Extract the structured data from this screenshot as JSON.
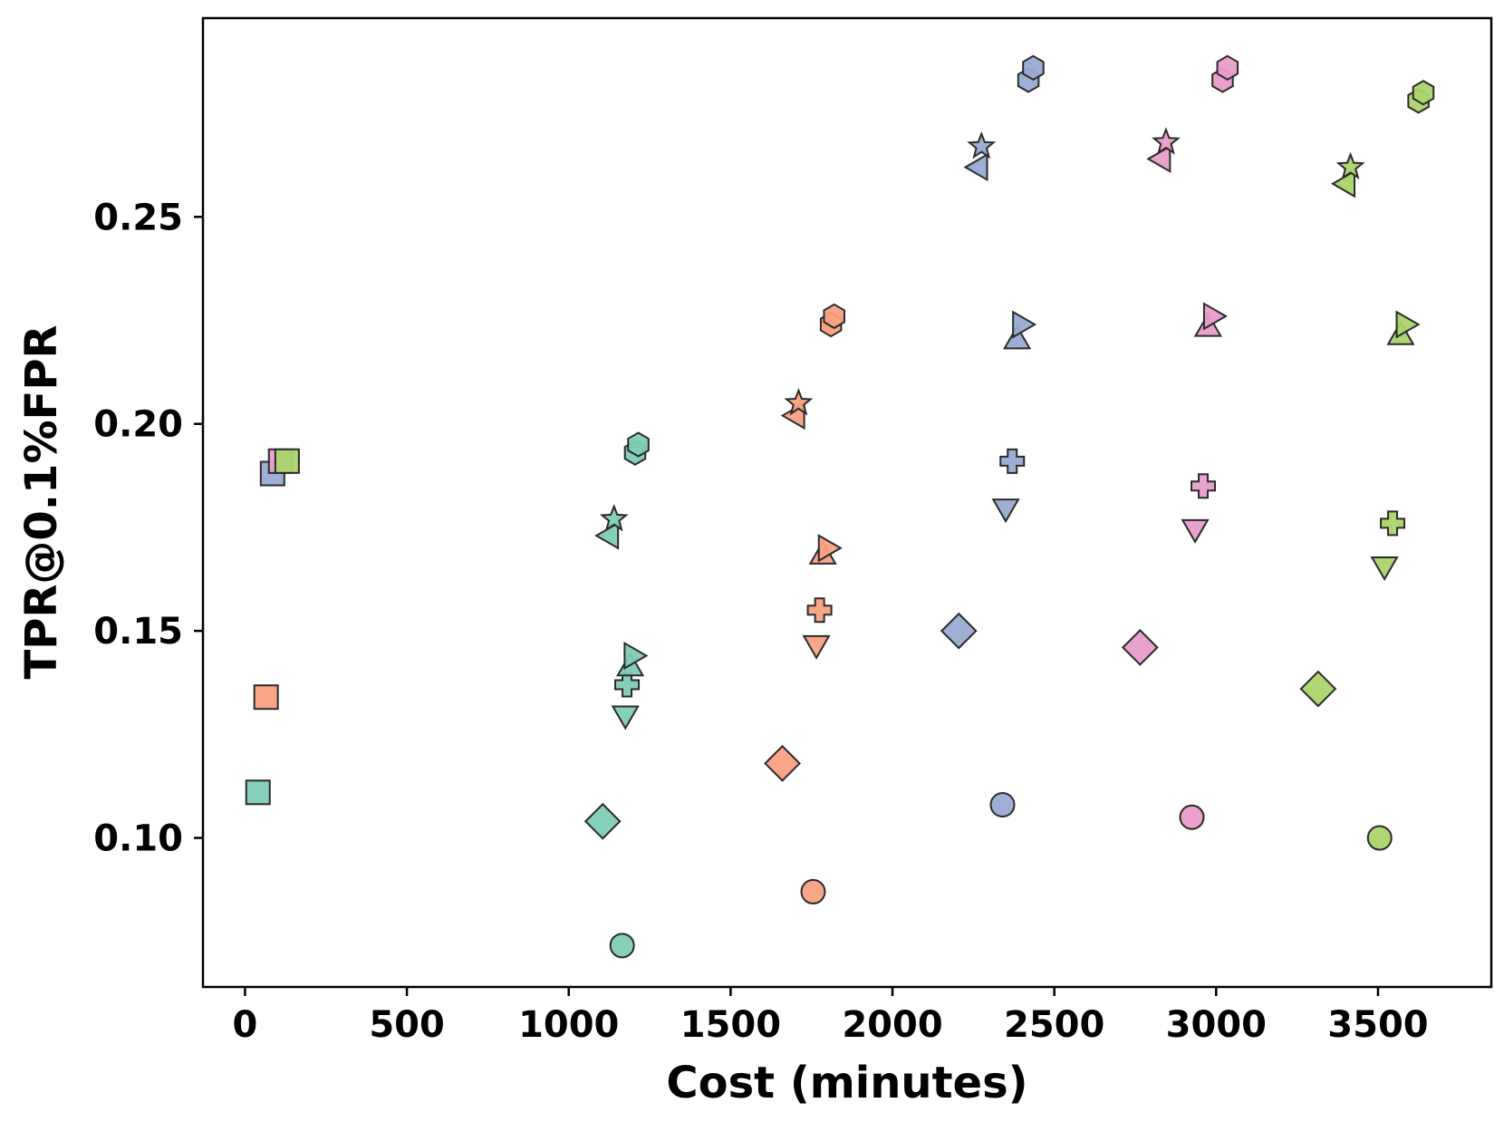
{
  "chart_data": {
    "type": "scatter",
    "title": "",
    "xlabel": "Cost (minutes)",
    "ylabel": "TPR@0.1%FPR",
    "xlim": [
      -130,
      3850
    ],
    "ylim": [
      0.064,
      0.298
    ],
    "xticks": [
      0,
      500,
      1000,
      1500,
      2000,
      2500,
      3000,
      3500
    ],
    "yticks": [
      0.1,
      0.15,
      0.2,
      0.25
    ],
    "xtick_labels": [
      "0",
      "500",
      "1000",
      "1500",
      "2000",
      "2500",
      "3000",
      "3500"
    ],
    "ytick_labels": [
      "0.10",
      "0.15",
      "0.20",
      "0.25"
    ],
    "grid": false,
    "legend": "none",
    "colors": {
      "teal": "#7fccb6",
      "orange": "#f9a081",
      "blue": "#9aaad2",
      "pink": "#e89ccb",
      "green": "#abd46a"
    },
    "points": [
      {
        "x": 40,
        "y": 0.111,
        "marker": "square",
        "color": "teal"
      },
      {
        "x": 65,
        "y": 0.134,
        "marker": "square",
        "color": "orange"
      },
      {
        "x": 85,
        "y": 0.188,
        "marker": "square",
        "color": "blue"
      },
      {
        "x": 110,
        "y": 0.191,
        "marker": "square",
        "color": "pink"
      },
      {
        "x": 130,
        "y": 0.191,
        "marker": "square",
        "color": "green"
      },
      {
        "x": 1105,
        "y": 0.104,
        "marker": "diamond",
        "color": "teal"
      },
      {
        "x": 1165,
        "y": 0.074,
        "marker": "circle",
        "color": "teal"
      },
      {
        "x": 1175,
        "y": 0.13,
        "marker": "triangle-down",
        "color": "teal"
      },
      {
        "x": 1180,
        "y": 0.137,
        "marker": "plus",
        "color": "teal"
      },
      {
        "x": 1190,
        "y": 0.141,
        "marker": "triangle-up",
        "color": "teal"
      },
      {
        "x": 1195,
        "y": 0.144,
        "marker": "triangle-right",
        "color": "teal"
      },
      {
        "x": 1130,
        "y": 0.173,
        "marker": "triangle-left",
        "color": "teal"
      },
      {
        "x": 1140,
        "y": 0.177,
        "marker": "star",
        "color": "teal"
      },
      {
        "x": 1205,
        "y": 0.193,
        "marker": "hexagon",
        "color": "teal"
      },
      {
        "x": 1215,
        "y": 0.195,
        "marker": "hexagon",
        "color": "teal"
      },
      {
        "x": 1660,
        "y": 0.118,
        "marker": "diamond",
        "color": "orange"
      },
      {
        "x": 1755,
        "y": 0.087,
        "marker": "circle",
        "color": "orange"
      },
      {
        "x": 1765,
        "y": 0.147,
        "marker": "triangle-down",
        "color": "orange"
      },
      {
        "x": 1775,
        "y": 0.155,
        "marker": "plus",
        "color": "orange"
      },
      {
        "x": 1785,
        "y": 0.168,
        "marker": "triangle-up",
        "color": "orange"
      },
      {
        "x": 1795,
        "y": 0.17,
        "marker": "triangle-right",
        "color": "orange"
      },
      {
        "x": 1705,
        "y": 0.202,
        "marker": "triangle-left",
        "color": "orange"
      },
      {
        "x": 1710,
        "y": 0.205,
        "marker": "star",
        "color": "orange"
      },
      {
        "x": 1810,
        "y": 0.224,
        "marker": "hexagon",
        "color": "orange"
      },
      {
        "x": 1820,
        "y": 0.226,
        "marker": "hexagon",
        "color": "orange"
      },
      {
        "x": 2205,
        "y": 0.15,
        "marker": "diamond",
        "color": "blue"
      },
      {
        "x": 2340,
        "y": 0.108,
        "marker": "circle",
        "color": "blue"
      },
      {
        "x": 2350,
        "y": 0.18,
        "marker": "triangle-down",
        "color": "blue"
      },
      {
        "x": 2370,
        "y": 0.191,
        "marker": "plus",
        "color": "blue"
      },
      {
        "x": 2385,
        "y": 0.22,
        "marker": "triangle-up",
        "color": "blue"
      },
      {
        "x": 2395,
        "y": 0.224,
        "marker": "triangle-right",
        "color": "blue"
      },
      {
        "x": 2270,
        "y": 0.262,
        "marker": "triangle-left",
        "color": "blue"
      },
      {
        "x": 2275,
        "y": 0.267,
        "marker": "star",
        "color": "blue"
      },
      {
        "x": 2420,
        "y": 0.283,
        "marker": "hexagon",
        "color": "blue"
      },
      {
        "x": 2435,
        "y": 0.286,
        "marker": "hexagon",
        "color": "blue"
      },
      {
        "x": 2765,
        "y": 0.146,
        "marker": "diamond",
        "color": "pink"
      },
      {
        "x": 2925,
        "y": 0.105,
        "marker": "circle",
        "color": "pink"
      },
      {
        "x": 2935,
        "y": 0.175,
        "marker": "triangle-down",
        "color": "pink"
      },
      {
        "x": 2960,
        "y": 0.185,
        "marker": "plus",
        "color": "pink"
      },
      {
        "x": 2975,
        "y": 0.223,
        "marker": "triangle-up",
        "color": "pink"
      },
      {
        "x": 2985,
        "y": 0.226,
        "marker": "triangle-right",
        "color": "pink"
      },
      {
        "x": 2835,
        "y": 0.264,
        "marker": "triangle-left",
        "color": "pink"
      },
      {
        "x": 2845,
        "y": 0.268,
        "marker": "star",
        "color": "pink"
      },
      {
        "x": 3020,
        "y": 0.283,
        "marker": "hexagon",
        "color": "pink"
      },
      {
        "x": 3035,
        "y": 0.286,
        "marker": "hexagon",
        "color": "pink"
      },
      {
        "x": 3315,
        "y": 0.136,
        "marker": "diamond",
        "color": "green"
      },
      {
        "x": 3505,
        "y": 0.1,
        "marker": "circle",
        "color": "green"
      },
      {
        "x": 3520,
        "y": 0.166,
        "marker": "triangle-down",
        "color": "green"
      },
      {
        "x": 3545,
        "y": 0.176,
        "marker": "plus",
        "color": "green"
      },
      {
        "x": 3570,
        "y": 0.221,
        "marker": "triangle-up",
        "color": "green"
      },
      {
        "x": 3580,
        "y": 0.224,
        "marker": "triangle-right",
        "color": "green"
      },
      {
        "x": 3405,
        "y": 0.258,
        "marker": "triangle-left",
        "color": "green"
      },
      {
        "x": 3415,
        "y": 0.262,
        "marker": "star",
        "color": "green"
      },
      {
        "x": 3625,
        "y": 0.278,
        "marker": "hexagon",
        "color": "green"
      },
      {
        "x": 3640,
        "y": 0.28,
        "marker": "hexagon",
        "color": "green"
      }
    ]
  }
}
